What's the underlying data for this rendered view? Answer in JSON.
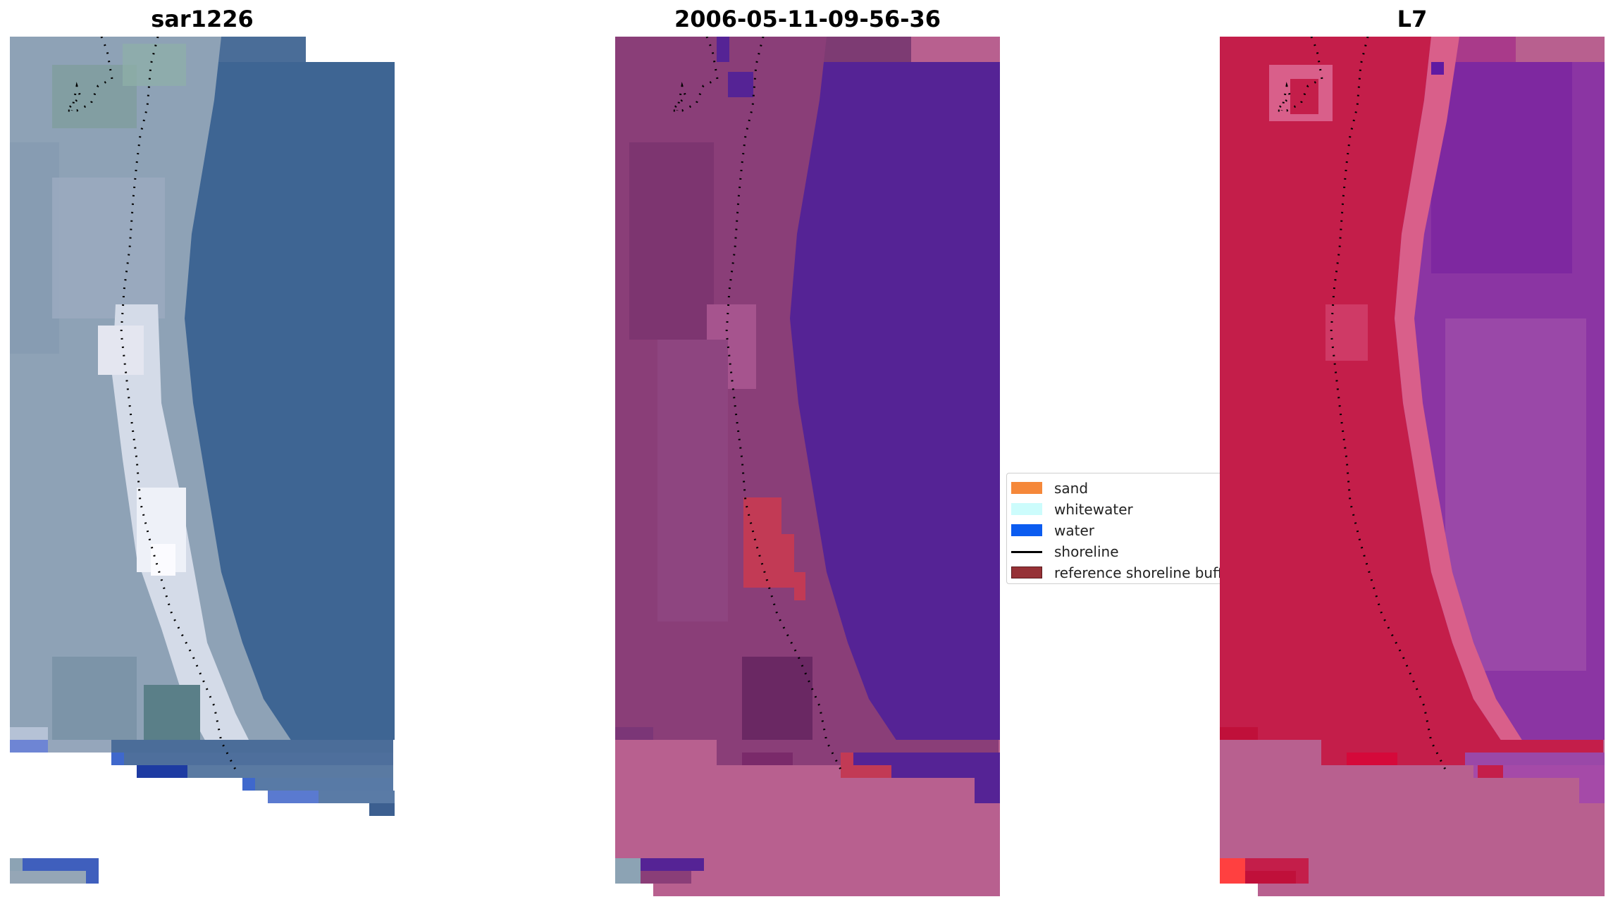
{
  "panels": [
    {
      "title": "sar1226",
      "colors": {
        "land": "#8fa3b7",
        "water": "#3f6592",
        "bright": "#dde3ee",
        "nodata": "#ffffff",
        "overlay_blue": "#3b5fc9"
      }
    },
    {
      "title": "2006-05-11-09-56-36",
      "colors": {
        "land": "#8a3e78",
        "water": "#552395",
        "nodata_fill": "#b8608f",
        "buffer": "#c23a55"
      }
    },
    {
      "title": "L7",
      "colors": {
        "land": "#c41e4a",
        "water": "#8b35a3",
        "nodata_fill": "#b8608f",
        "transition": "#d95f8a"
      }
    }
  ],
  "legend": {
    "items": [
      {
        "label": "sand",
        "color": "#f5883a",
        "kind": "patch"
      },
      {
        "label": "whitewater",
        "color": "#ccfcfc",
        "kind": "patch"
      },
      {
        "label": "water",
        "color": "#0b5cf0",
        "kind": "patch"
      },
      {
        "label": "shoreline",
        "color": "#000000",
        "kind": "line"
      },
      {
        "label": "reference shoreline buffer",
        "color": "#963136",
        "kind": "patch"
      }
    ]
  }
}
